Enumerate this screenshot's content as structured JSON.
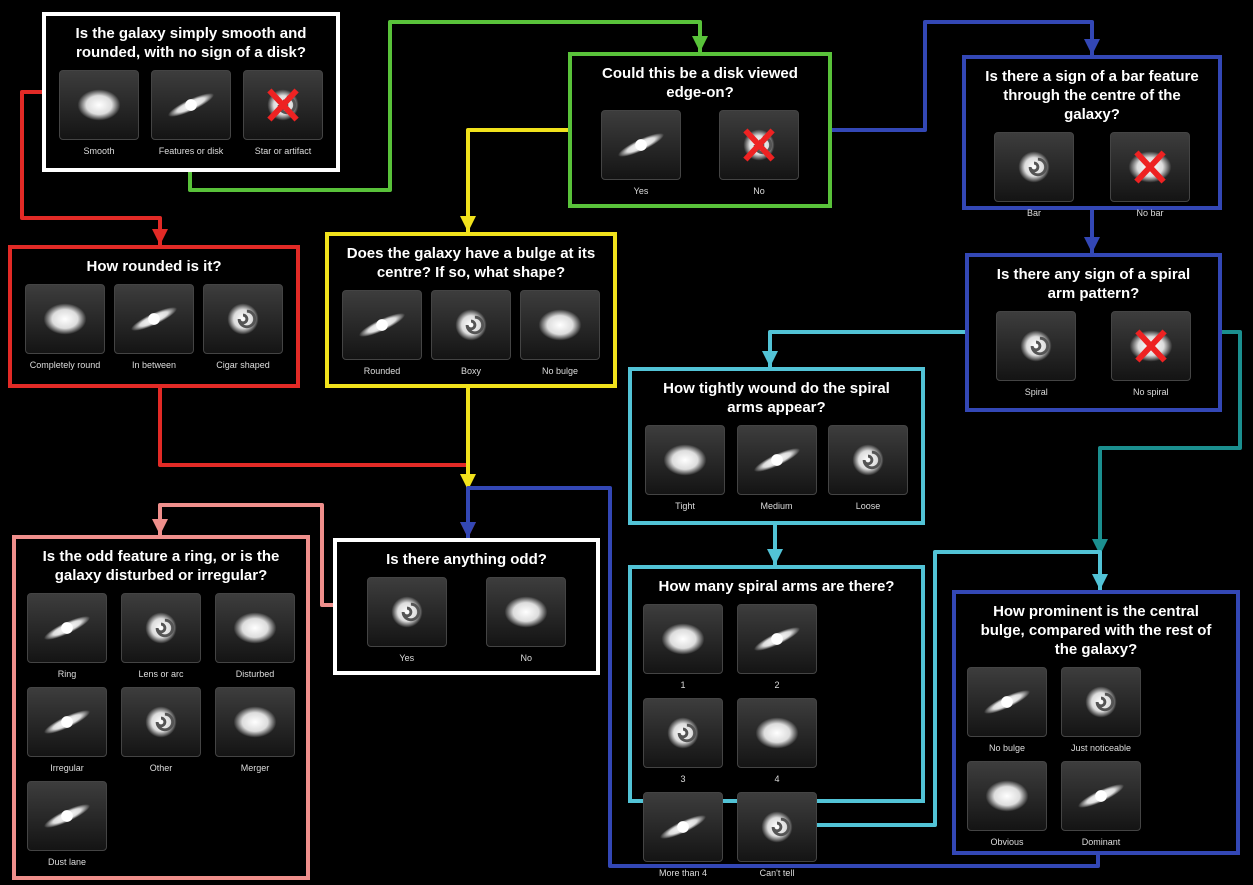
{
  "nodes": [
    {
      "question": "Is the galaxy simply smooth and rounded, with no sign of a disk?",
      "options": [
        "Smooth",
        "Features or disk",
        "Star or artifact"
      ]
    },
    {
      "question": "Could this be a disk viewed edge-on?",
      "options": [
        "Yes",
        "No"
      ]
    },
    {
      "question": "Is there a sign of a bar feature through the centre of the galaxy?",
      "options": [
        "Bar",
        "No bar"
      ]
    },
    {
      "question": "How rounded is it?",
      "options": [
        "Completely round",
        "In between",
        "Cigar shaped"
      ]
    },
    {
      "question": "Does the galaxy have a bulge at its centre? If so, what shape?",
      "options": [
        "Rounded",
        "Boxy",
        "No bulge"
      ]
    },
    {
      "question": "Is there any sign of a spiral arm pattern?",
      "options": [
        "Spiral",
        "No spiral"
      ]
    },
    {
      "question": "How tightly wound do the spiral arms appear?",
      "options": [
        "Tight",
        "Medium",
        "Loose"
      ]
    },
    {
      "question": "Is the odd feature a ring, or is the galaxy disturbed or irregular?",
      "options": [
        "Ring",
        "Lens or arc",
        "Disturbed",
        "Irregular",
        "Other",
        "Merger",
        "Dust lane"
      ]
    },
    {
      "question": "Is there anything odd?",
      "options": [
        "Yes",
        "No"
      ]
    },
    {
      "question": "How many spiral arms are there?",
      "options": [
        "1",
        "2",
        "3",
        "4",
        "More than 4",
        "Can't tell"
      ]
    },
    {
      "question": "How prominent is the central bulge, compared with the rest of the galaxy?",
      "options": [
        "No bulge",
        "Just noticeable",
        "Obvious",
        "Dominant"
      ]
    }
  ]
}
